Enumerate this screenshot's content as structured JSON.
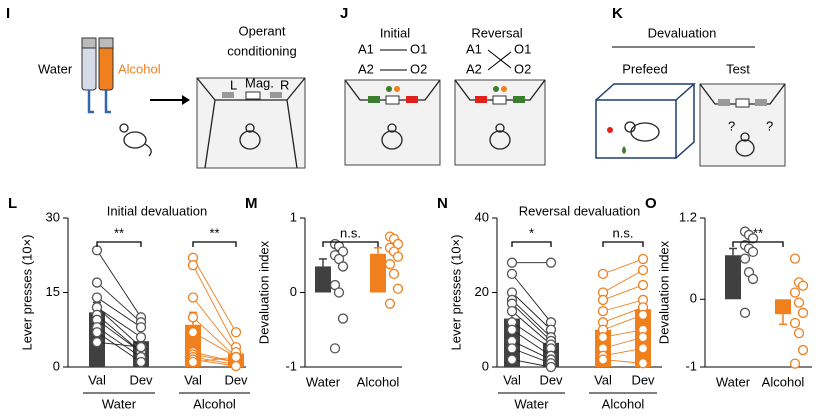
{
  "diagrams": {
    "operant": {
      "label": "I",
      "water": "Water",
      "alcohol": "Alcohol",
      "title": [
        "Operant",
        "conditioning"
      ],
      "levers": [
        "L",
        "Mag.",
        "R"
      ]
    },
    "reversal": {
      "label": "J",
      "initial": "Initial",
      "reversal": "Reversal",
      "actions": [
        "A1",
        "A2"
      ],
      "outcomes": [
        "O1",
        "O2"
      ]
    },
    "devaluation": {
      "label": "K",
      "title": "Devaluation",
      "prefeed": "Prefeed",
      "test": "Test",
      "question": "?"
    }
  },
  "chart_data": [
    {
      "type": "bar",
      "label": "L",
      "title": "Initial devaluation",
      "ylabel": "Lever presses (10×)",
      "ylim": [
        0,
        30
      ],
      "yticks": [
        0,
        15,
        30
      ],
      "categories": [
        "Val",
        "Dev"
      ],
      "annotations": [
        "**",
        "**"
      ],
      "series": [
        {
          "name": "Water",
          "color": "#404040",
          "point_color": "#555555",
          "values": [
            11,
            5.2
          ],
          "errors": [
            2,
            1.2
          ],
          "points": [
            [
              23.5,
              17,
              14,
              12,
              12,
              10.5,
              9.5,
              8,
              7,
              5
            ],
            [
              10,
              9,
              8,
              6,
              4,
              3,
              3,
              2,
              1,
              4
            ]
          ]
        },
        {
          "name": "Alcohol",
          "color": "#f07f1e",
          "point_color": "#f07f1e",
          "values": [
            8.5,
            2.7
          ],
          "errors": [
            2.5,
            1
          ],
          "points": [
            [
              22,
              20.5,
              14,
              10,
              7,
              3,
              2.5,
              2,
              1.5,
              1
            ],
            [
              7,
              4,
              3,
              2,
              2,
              1,
              1,
              0.5,
              0.2,
              2
            ]
          ]
        }
      ]
    },
    {
      "type": "bar",
      "label": "M",
      "ylabel": "Devaluation index",
      "ylim": [
        -1,
        1
      ],
      "yticks": [
        -1,
        0,
        1
      ],
      "annotations": [
        "n.s."
      ],
      "series": [
        {
          "name": "Water",
          "color": "#404040",
          "point_color": "#555555",
          "values": [
            0.35
          ],
          "errors": [
            0.1
          ],
          "points": [
            [
              0.65,
              0.62,
              0.55,
              0.5,
              0.45,
              0.35,
              0.1,
              0,
              -0.35,
              -0.75
            ]
          ]
        },
        {
          "name": "Alcohol",
          "color": "#f07f1e",
          "point_color": "#f07f1e",
          "values": [
            0.52
          ],
          "errors": [
            0.08
          ],
          "points": [
            [
              0.75,
              0.72,
              0.65,
              0.6,
              0.55,
              0.48,
              0.38,
              0.25,
              0.05,
              -0.15
            ]
          ]
        }
      ]
    },
    {
      "type": "bar",
      "label": "N",
      "title": "Reversal devaluation",
      "ylabel": "Lever presses (10×)",
      "ylim": [
        0,
        40
      ],
      "yticks": [
        0,
        20,
        40
      ],
      "categories": [
        "Val",
        "Dev"
      ],
      "annotations": [
        "*",
        "n.s."
      ],
      "series": [
        {
          "name": "Water",
          "color": "#404040",
          "point_color": "#555555",
          "values": [
            13,
            6.5
          ],
          "errors": [
            2,
            2.5
          ],
          "points": [
            [
              28,
              25,
              20,
              18,
              17,
              15,
              12,
              10,
              7,
              5,
              2
            ],
            [
              28,
              12,
              10,
              8,
              7,
              6,
              5,
              3,
              2,
              1,
              0
            ]
          ]
        },
        {
          "name": "Alcohol",
          "color": "#f07f1e",
          "point_color": "#f07f1e",
          "values": [
            10,
            15.5
          ],
          "errors": [
            2,
            2.5
          ],
          "points": [
            [
              25,
              20,
              18,
              15,
              12,
              10,
              8,
              5,
              3,
              2
            ],
            [
              29,
              26,
              22,
              18,
              16,
              14,
              10,
              8,
              5,
              1
            ]
          ]
        }
      ]
    },
    {
      "type": "bar",
      "label": "O",
      "ylabel": "Devaluation index",
      "ylim": [
        -1,
        1.2
      ],
      "yticks": [
        -1,
        0,
        1.2
      ],
      "annotations": [
        "**"
      ],
      "series": [
        {
          "name": "Water",
          "color": "#404040",
          "point_color": "#555555",
          "values": [
            0.65
          ],
          "errors": [
            0.1
          ],
          "points": [
            [
              1,
              0.95,
              0.9,
              0.8,
              0.75,
              0.7,
              0.6,
              0.4,
              0.3,
              -0.2
            ]
          ]
        },
        {
          "name": "Alcohol",
          "color": "#f07f1e",
          "point_color": "#f07f1e",
          "values": [
            -0.22
          ],
          "errors": [
            0.15
          ],
          "points": [
            [
              0.6,
              0.25,
              0.2,
              0.1,
              -0.05,
              -0.2,
              -0.35,
              -0.5,
              -0.75,
              -0.95
            ]
          ]
        }
      ]
    }
  ]
}
